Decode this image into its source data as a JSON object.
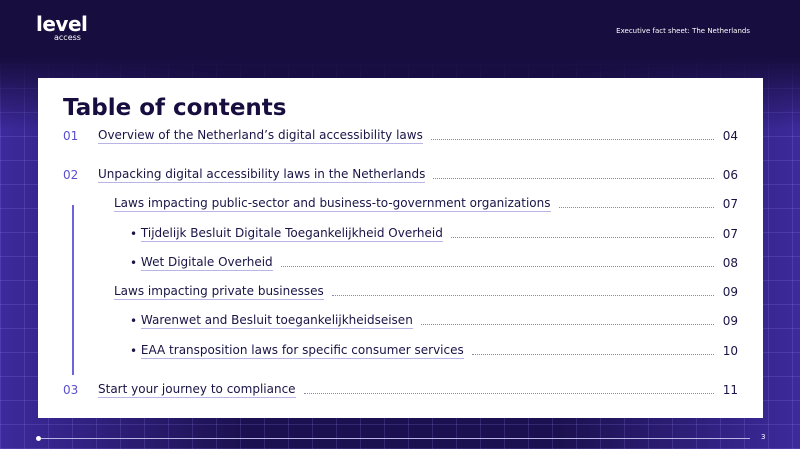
{
  "header": {
    "logo": "level",
    "logo_sub": "access",
    "subtitle": "Executive fact sheet: The Netherlands"
  },
  "toc": {
    "title": "Table of contents",
    "sections": [
      {
        "number": "01",
        "text": "Overview of the Netherland’s digital accessibility laws",
        "page": "04"
      },
      {
        "number": "02",
        "text": "Unpacking digital accessibility laws in the Netherlands",
        "page": "06",
        "subsections": [
          {
            "text": "Laws impacting public-sector and business-to-government organizations",
            "page": "07",
            "items": [
              {
                "text": "Tijdelijk Besluit Digitale Toegankelijkheid Overheid",
                "page": "07"
              },
              {
                "text": "Wet Digitale Overheid",
                "page": "08"
              }
            ]
          },
          {
            "text": "Laws impacting private businesses",
            "page": "09",
            "items": [
              {
                "text": "Warenwet and Besluit toegankelijkheidseisen",
                "page": "09"
              },
              {
                "text": "EAA transposition laws for specific consumer services",
                "page": "10"
              }
            ]
          }
        ]
      },
      {
        "number": "03",
        "text": "Start your journey to compliance",
        "page": "11"
      }
    ]
  },
  "footer": {
    "page_number": "3"
  }
}
